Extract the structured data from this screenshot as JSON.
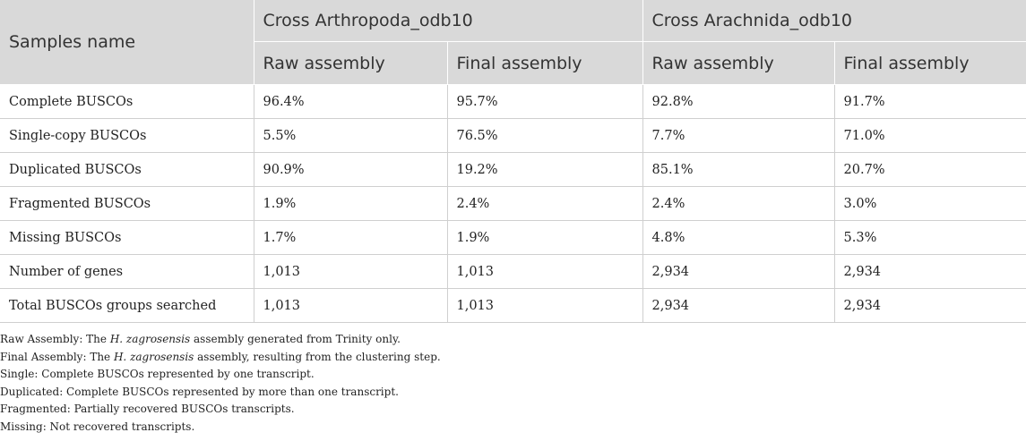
{
  "table": {
    "header": {
      "row_label": "Samples name",
      "groups": [
        "Cross Arthropoda_odb10",
        "Cross Arachnida_odb10"
      ],
      "subheaders": [
        "Raw assembly",
        "Final assembly",
        "Raw assembly",
        "Final assembly"
      ]
    },
    "rows": [
      {
        "label": "Complete BUSCOs",
        "cells": [
          "96.4%",
          "95.7%",
          "92.8%",
          "91.7%"
        ]
      },
      {
        "label": "Single-copy BUSCOs",
        "cells": [
          "5.5%",
          "76.5%",
          "7.7%",
          "71.0%"
        ]
      },
      {
        "label": "Duplicated BUSCOs",
        "cells": [
          "90.9%",
          "19.2%",
          "85.1%",
          "20.7%"
        ]
      },
      {
        "label": "Fragmented BUSCOs",
        "cells": [
          "1.9%",
          "2.4%",
          "2.4%",
          "3.0%"
        ]
      },
      {
        "label": "Missing BUSCOs",
        "cells": [
          "1.7%",
          "1.9%",
          "4.8%",
          "5.3%"
        ]
      },
      {
        "label": "Number of genes",
        "cells": [
          "1,013",
          "1,013",
          "2,934",
          "2,934"
        ]
      },
      {
        "label": "Total BUSCOs groups searched",
        "cells": [
          "1,013",
          "1,013",
          "2,934",
          "2,934"
        ]
      }
    ]
  },
  "notes": {
    "raw": {
      "prefix": "Raw Assembly: The ",
      "species": "H. zagrosensis",
      "suffix": " assembly generated from Trinity only."
    },
    "final": {
      "prefix": "Final Assembly: The ",
      "species": "H. zagrosensis",
      "suffix": " assembly, resulting from the clustering step."
    },
    "single": "Single: Complete BUSCOs represented by one transcript.",
    "duplicated": "Duplicated: Complete BUSCOs represented by more than one transcript.",
    "fragmented": "Fragmented: Partially recovered BUSCOs transcripts.",
    "missing": "Missing: Not recovered transcripts."
  }
}
